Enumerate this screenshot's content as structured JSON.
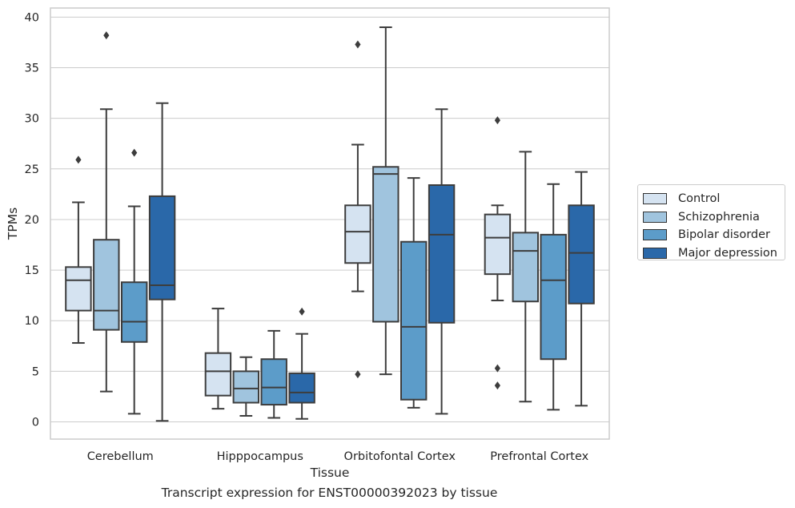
{
  "chart_data": {
    "type": "boxplot",
    "title": "Transcript expression for ENST00000392023 by tissue",
    "xlabel": "Tissue",
    "ylabel": "TPMs",
    "ylim": [
      -1.7,
      40.9
    ],
    "yticks": [
      0,
      5,
      10,
      15,
      20,
      25,
      30,
      35,
      40
    ],
    "categories": [
      "Cerebellum",
      "Hipppocampus",
      "Orbitofontal Cortex",
      "Prefrontal Cortex"
    ],
    "grid": "horizontal",
    "legend_position": "right",
    "series": [
      {
        "name": "Control",
        "color": "#d5e3f1",
        "boxes": [
          {
            "whisker_low": 7.8,
            "q1": 11.0,
            "median": 14.0,
            "q3": 15.3,
            "whisker_high": 21.7,
            "outliers": [
              25.9
            ]
          },
          {
            "whisker_low": 1.3,
            "q1": 2.6,
            "median": 5.0,
            "q3": 6.8,
            "whisker_high": 11.2,
            "outliers": []
          },
          {
            "whisker_low": 12.9,
            "q1": 15.7,
            "median": 18.8,
            "q3": 21.4,
            "whisker_high": 27.4,
            "outliers": [
              37.3,
              4.7
            ]
          },
          {
            "whisker_low": 12.0,
            "q1": 14.6,
            "median": 18.2,
            "q3": 20.5,
            "whisker_high": 21.4,
            "outliers": [
              29.8,
              5.3,
              3.6
            ]
          }
        ]
      },
      {
        "name": "Schizophrenia",
        "color": "#a0c4de",
        "boxes": [
          {
            "whisker_low": 3.0,
            "q1": 9.1,
            "median": 11.0,
            "q3": 18.0,
            "whisker_high": 30.9,
            "outliers": [
              38.2
            ]
          },
          {
            "whisker_low": 0.6,
            "q1": 1.9,
            "median": 3.3,
            "q3": 5.0,
            "whisker_high": 6.4,
            "outliers": []
          },
          {
            "whisker_low": 4.7,
            "q1": 9.9,
            "median": 24.5,
            "q3": 25.2,
            "whisker_high": 39.0,
            "outliers": []
          },
          {
            "whisker_low": 2.0,
            "q1": 11.9,
            "median": 16.9,
            "q3": 18.7,
            "whisker_high": 26.7,
            "outliers": []
          }
        ]
      },
      {
        "name": "Bipolar disorder",
        "color": "#5c9cc9",
        "boxes": [
          {
            "whisker_low": 0.8,
            "q1": 7.9,
            "median": 9.9,
            "q3": 13.8,
            "whisker_high": 21.3,
            "outliers": [
              26.6
            ]
          },
          {
            "whisker_low": 0.4,
            "q1": 1.7,
            "median": 3.4,
            "q3": 6.2,
            "whisker_high": 9.0,
            "outliers": []
          },
          {
            "whisker_low": 1.4,
            "q1": 2.2,
            "median": 9.4,
            "q3": 17.8,
            "whisker_high": 24.1,
            "outliers": []
          },
          {
            "whisker_low": 1.2,
            "q1": 6.2,
            "median": 14.0,
            "q3": 18.5,
            "whisker_high": 23.5,
            "outliers": []
          }
        ]
      },
      {
        "name": "Major depression",
        "color": "#2a68a9",
        "boxes": [
          {
            "whisker_low": 0.1,
            "q1": 12.1,
            "median": 13.5,
            "q3": 22.3,
            "whisker_high": 31.5,
            "outliers": []
          },
          {
            "whisker_low": 0.3,
            "q1": 1.9,
            "median": 2.9,
            "q3": 4.8,
            "whisker_high": 8.7,
            "outliers": [
              10.9
            ]
          },
          {
            "whisker_low": 0.8,
            "q1": 9.8,
            "median": 18.5,
            "q3": 23.4,
            "whisker_high": 30.9,
            "outliers": []
          },
          {
            "whisker_low": 1.6,
            "q1": 11.7,
            "median": 16.7,
            "q3": 21.4,
            "whisker_high": 24.7,
            "outliers": []
          }
        ]
      }
    ]
  }
}
